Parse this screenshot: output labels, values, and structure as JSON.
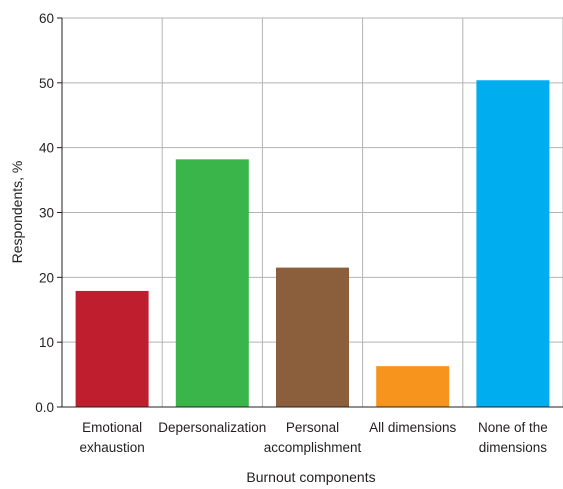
{
  "chart_data": {
    "type": "bar",
    "title": "",
    "xlabel": "Burnout components",
    "ylabel": "Respondents, %",
    "ylim": [
      0,
      60
    ],
    "yticks": [
      "0.0",
      "10",
      "20",
      "30",
      "40",
      "50",
      "60"
    ],
    "grid": true,
    "categories": [
      [
        "Emotional",
        "exhaustion"
      ],
      [
        "Depersonalization"
      ],
      [
        "Personal",
        "accomplishment"
      ],
      [
        "All dimensions"
      ],
      [
        "None of the",
        "dimensions"
      ]
    ],
    "values": [
      17.9,
      38.2,
      21.5,
      6.3,
      50.4
    ],
    "colors": [
      "#be1e2d",
      "#39b54a",
      "#8b5e3c",
      "#f7941d",
      "#00aeef"
    ]
  }
}
